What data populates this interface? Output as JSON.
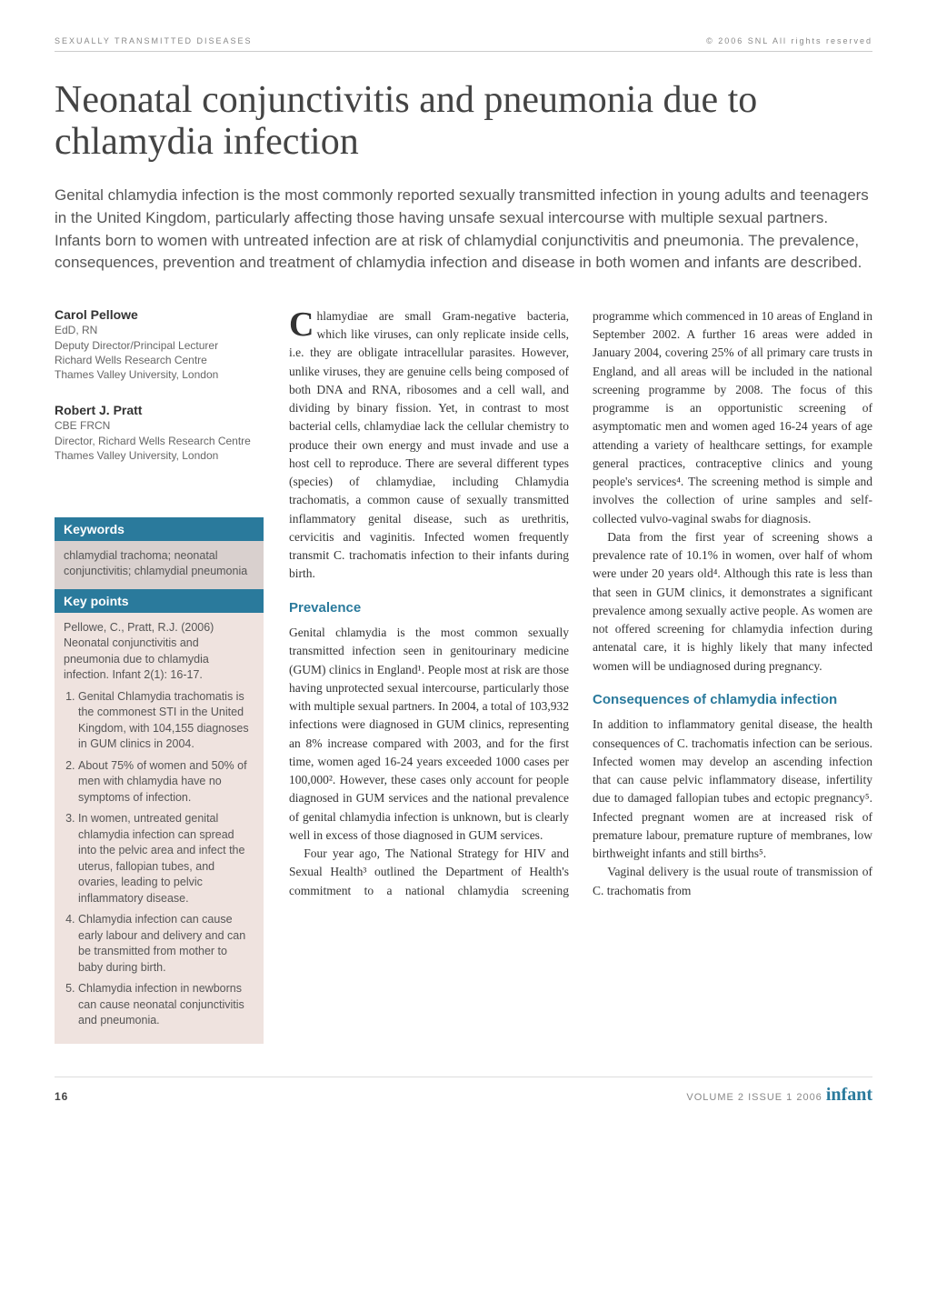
{
  "colors": {
    "accent": "#2a7a9c",
    "keywords_bg": "#d9d0ce",
    "keypoints_bg": "#efe3df",
    "text_body": "#333333",
    "text_muted": "#888888",
    "journal_brand": "#2a7a9c"
  },
  "header": {
    "section": "SEXUALLY TRANSMITTED DISEASES",
    "copyright": "© 2006 SNL All rights reserved"
  },
  "title": "Neonatal conjunctivitis and pneumonia due to chlamydia infection",
  "lede": "Genital chlamydia infection is the most commonly reported sexually transmitted infection in young adults and teenagers in the United Kingdom, particularly affecting those having unsafe sexual intercourse with multiple sexual partners. Infants born to women with untreated infection are at risk of chlamydial conjunctivitis and pneumonia. The prevalence, consequences, prevention and treatment of chlamydia infection and disease in both women and infants are described.",
  "authors": [
    {
      "name": "Carol Pellowe",
      "creds": "EdD, RN",
      "lines": [
        "Deputy Director/Principal Lecturer",
        "Richard Wells Research Centre",
        "Thames Valley University, London"
      ]
    },
    {
      "name": "Robert J. Pratt",
      "creds": "CBE FRCN",
      "lines": [
        "Director, Richard Wells Research Centre",
        "Thames Valley University, London"
      ]
    }
  ],
  "keywords_box": {
    "heading": "Keywords",
    "text": "chlamydial trachoma; neonatal conjunctivitis; chlamydial pneumonia"
  },
  "keypoints_box": {
    "heading": "Key points",
    "citation": "Pellowe, C., Pratt, R.J. (2006) Neonatal conjunctivitis and pneumonia due to chlamydia infection. Infant 2(1): 16-17.",
    "items": [
      "Genital Chlamydia trachomatis is the commonest STI in the United Kingdom, with 104,155 diagnoses in GUM clinics in 2004.",
      "About 75% of women and 50% of men with chlamydia have no symptoms of infection.",
      "In women, untreated genital chlamydia infection can spread into the pelvic area and infect the uterus, fallopian tubes, and ovaries, leading to pelvic inflammatory disease.",
      "Chlamydia infection can cause early labour and delivery and can be transmitted from mother to baby during birth.",
      "Chlamydia infection in newborns can cause neonatal conjunctivitis and pneumonia."
    ]
  },
  "body": {
    "intro_dropcap": "C",
    "intro": "hlamydiae are small Gram-negative bacteria, which like viruses, can only replicate inside cells, i.e. they are obligate intracellular parasites. However, unlike viruses, they are genuine cells being composed of both DNA and RNA, ribosomes and a cell wall, and dividing by binary fission. Yet, in contrast to most bacterial cells, chlamydiae lack the cellular chemistry to produce their own energy and must invade and use a host cell to reproduce. There are several different types (species) of chlamydiae, including Chlamydia trachomatis, a common cause of sexually transmitted inflammatory genital disease, such as urethritis, cervicitis and vaginitis. Infected women frequently transmit C. trachomatis infection to their infants during birth.",
    "prevalence_heading": "Prevalence",
    "prevalence_p1": "Genital chlamydia is the most common sexually transmitted infection seen in genitourinary medicine (GUM) clinics in England¹. People most at risk are those having unprotected sexual intercourse, particularly those with multiple sexual partners. In 2004, a total of 103,932 infections were diagnosed in GUM clinics, representing an 8% increase compared with 2003, and for the first time, women aged 16-24 years exceeded 1000 cases per 100,000². However, these cases only account for people diagnosed in GUM services and the national prevalence of genital chlamydia infection is unknown, but is clearly well in excess of those diagnosed in GUM services.",
    "prevalence_p2": "Four year ago, The National Strategy for HIV and Sexual Health³ outlined the Department of Health's commitment to a national chlamydia screening programme which commenced in 10 areas of England in September 2002. A further 16 areas were added in January 2004, covering 25% of all primary care trusts in England, and all areas will be included in the national screening programme by 2008. The focus of this programme is an opportunistic screening of asymptomatic men and women aged 16-24 years of age attending a variety of healthcare settings, for example general practices, contraceptive clinics and young people's services⁴. The screening method is simple and involves the collection of urine samples and self-collected vulvo-vaginal swabs for diagnosis.",
    "prevalence_p3": "Data from the first year of screening shows a prevalence rate of 10.1% in women, over half of whom were under 20 years old⁴. Although this rate is less than that seen in GUM clinics, it demonstrates a significant prevalence among sexually active people. As women are not offered screening for chlamydia infection during antenatal care, it is highly likely that many infected women will be undiagnosed during pregnancy.",
    "consequences_heading": "Consequences of chlamydia infection",
    "consequences_p1": "In addition to inflammatory genital disease, the health consequences of C. trachomatis infection can be serious. Infected women may develop an ascending infection that can cause pelvic inflammatory disease, infertility due to damaged fallopian tubes and ectopic pregnancy⁵. Infected pregnant women are at increased risk of premature labour, premature rupture of membranes, low birthweight infants and still births⁵.",
    "consequences_p2": "Vaginal delivery is the usual route of transmission of C. trachomatis from"
  },
  "footer": {
    "page": "16",
    "issue": "VOLUME 2 ISSUE 1 2006",
    "journal": "infant"
  }
}
